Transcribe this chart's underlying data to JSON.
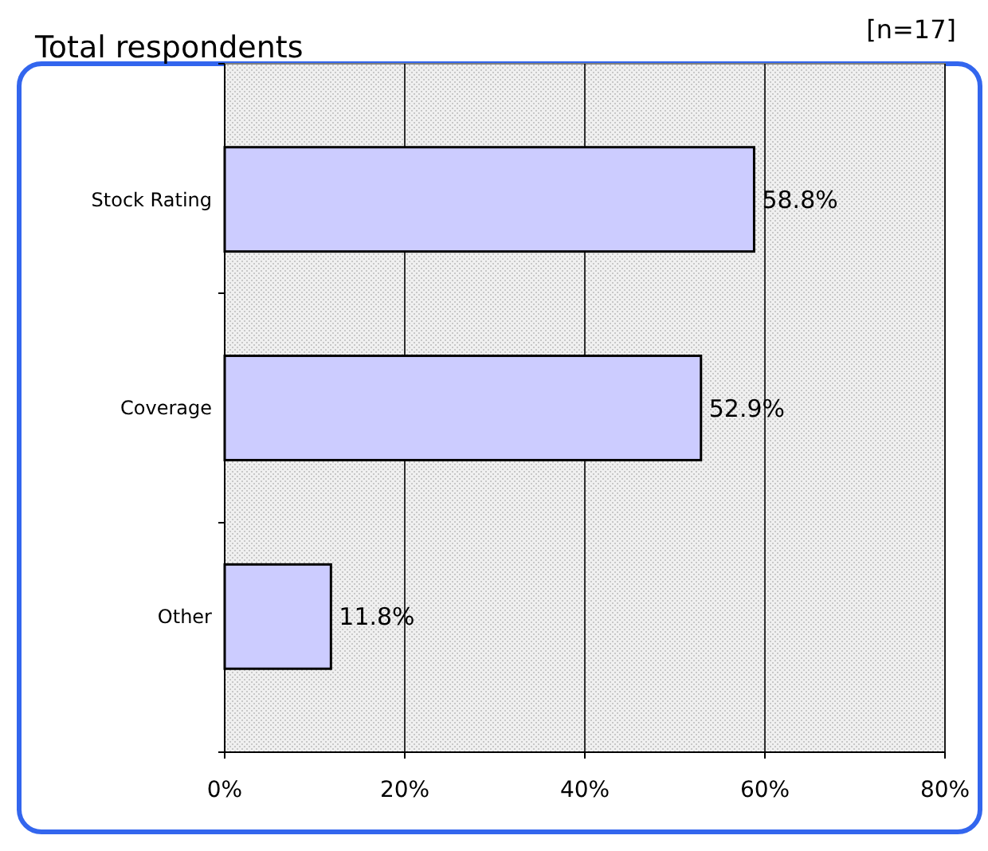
{
  "chart_data": {
    "type": "bar",
    "orientation": "horizontal",
    "title": "Total respondents",
    "annotations": [
      "[n=17]"
    ],
    "categories": [
      "Stock Rating",
      "Coverage",
      "Other"
    ],
    "values": [
      58.8,
      52.9,
      11.8
    ],
    "value_labels": [
      "58.8%",
      "52.9%",
      "11.8%"
    ],
    "color": "#ccccff",
    "xlim": [
      0,
      80
    ],
    "xticks": [
      {
        "value": 0,
        "label": "0%"
      },
      {
        "value": 20,
        "label": "20%"
      },
      {
        "value": 40,
        "label": "40%"
      },
      {
        "value": 60,
        "label": "60%"
      },
      {
        "value": 80,
        "label": "80%"
      }
    ],
    "grid": "x"
  }
}
